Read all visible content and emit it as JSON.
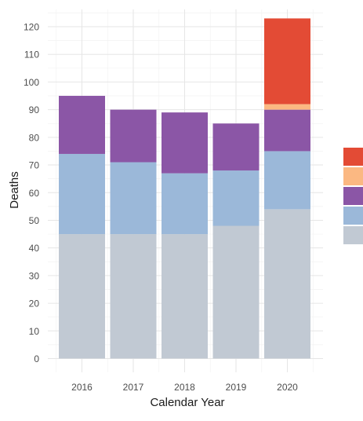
{
  "chart_data": {
    "type": "bar",
    "stacked": true,
    "title": "",
    "xlabel": "Calendar Year",
    "ylabel": "Deaths",
    "categories": [
      "2016",
      "2017",
      "2018",
      "2019",
      "2020"
    ],
    "ylim": [
      0,
      125
    ],
    "y_ticks": [
      0,
      10,
      20,
      30,
      40,
      50,
      60,
      70,
      80,
      90,
      100,
      110,
      120
    ],
    "grid": true,
    "legend_position": "right",
    "series": [
      {
        "color": "#c1c9d3",
        "values": [
          45,
          45,
          45,
          48,
          54
        ]
      },
      {
        "color": "#9bb8d9",
        "values": [
          29,
          26,
          22,
          20,
          21
        ]
      },
      {
        "color": "#8b56a6",
        "values": [
          21,
          19,
          22,
          17,
          15
        ]
      },
      {
        "color": "#fbb882",
        "values": [
          0,
          0,
          0,
          0,
          2
        ]
      },
      {
        "color": "#e34b35",
        "values": [
          0,
          0,
          0,
          0,
          31
        ]
      }
    ]
  }
}
